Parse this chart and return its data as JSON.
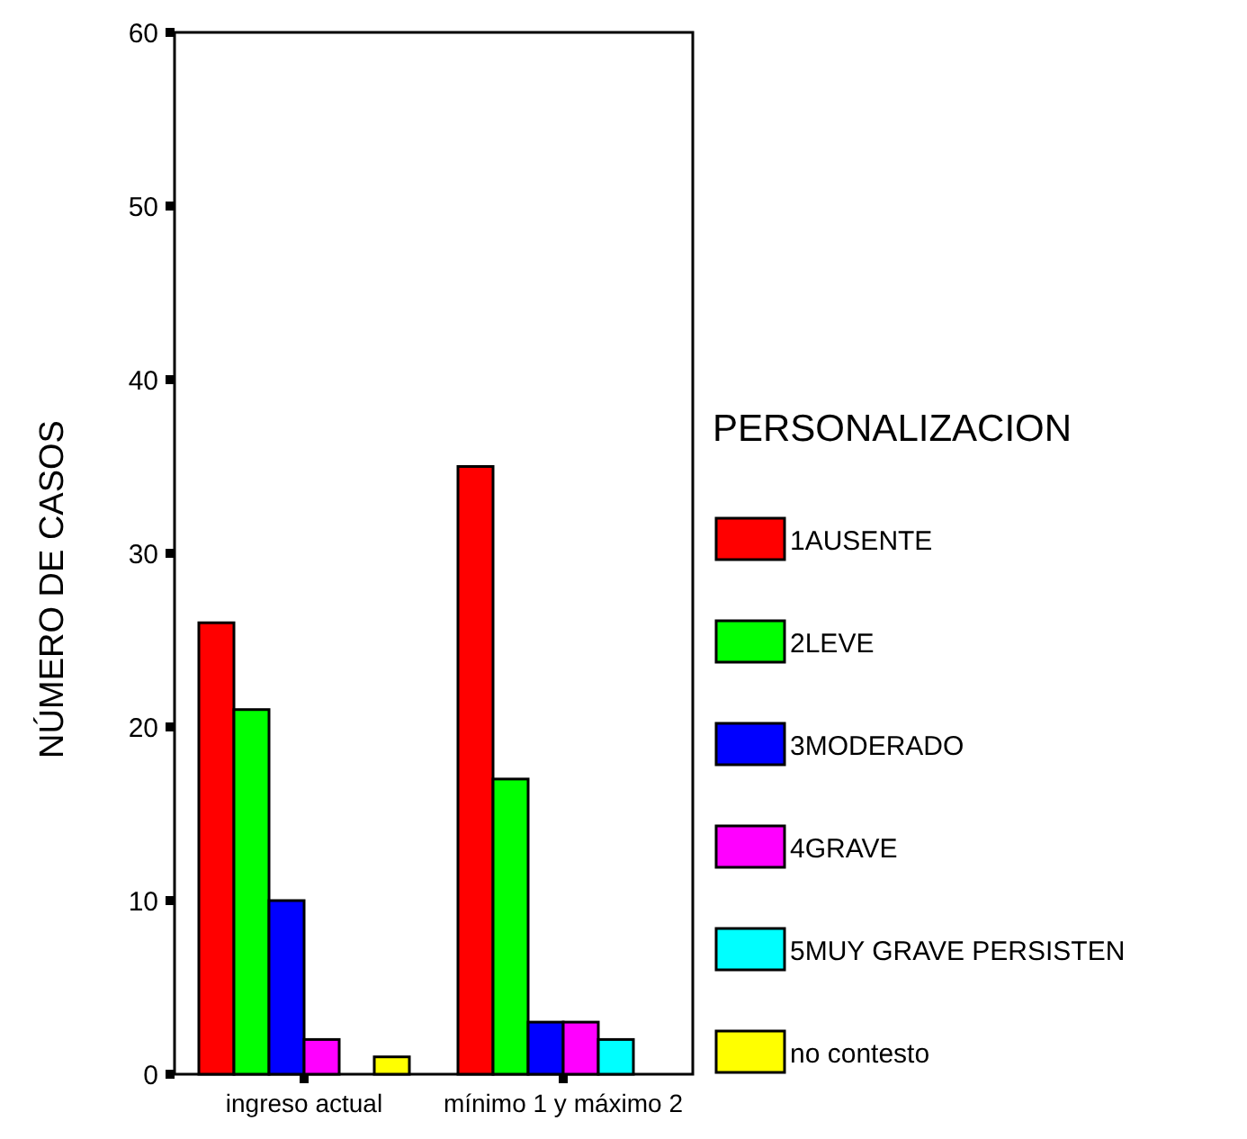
{
  "chart_data": {
    "type": "bar",
    "ylabel": "NÚMERO  DE CASOS",
    "legend_title": "PERSONALIZACION",
    "categories": [
      "ingreso actual",
      "mínimo 1 y máximo 2"
    ],
    "series": [
      {
        "name": "1AUSENTE",
        "color": "#ff0000",
        "values": [
          26,
          35
        ]
      },
      {
        "name": "2LEVE",
        "color": "#00ff00",
        "values": [
          21,
          17
        ]
      },
      {
        "name": "3MODERADO",
        "color": "#0000ff",
        "values": [
          10,
          3
        ]
      },
      {
        "name": "4GRAVE",
        "color": "#ff00ff",
        "values": [
          2,
          3
        ]
      },
      {
        "name": "5MUY  GRAVE PERSISTEN",
        "color": "#00ffff",
        "values": [
          null,
          2
        ]
      },
      {
        "name": "no contesto",
        "color": "#ffff00",
        "values": [
          1,
          null
        ]
      }
    ],
    "ylim": [
      0,
      60
    ],
    "yticks": [
      0,
      10,
      20,
      30,
      40,
      50,
      60
    ],
    "legend": "right"
  }
}
